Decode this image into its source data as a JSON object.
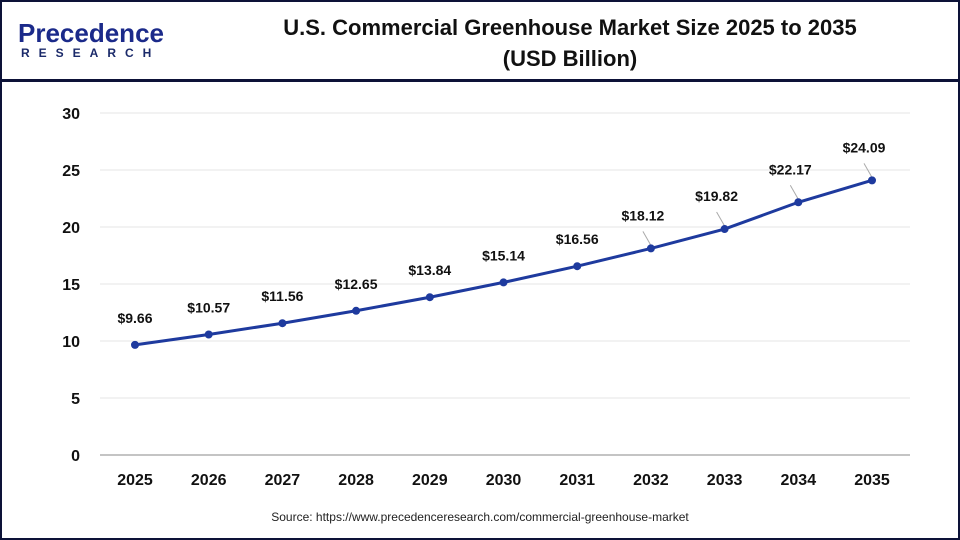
{
  "logo": {
    "brand": "Precedence",
    "sub": "RESEARCH"
  },
  "header": {
    "title_line1": "U.S. Commercial Greenhouse Market Size 2025 to 2035",
    "title_line2": "(USD Billion)"
  },
  "source": "Source: https://www.precedenceresearch.com/commercial-greenhouse-market",
  "chart_data": {
    "type": "line",
    "title": "U.S. Commercial Greenhouse Market Size 2025 to 2035 (USD Billion)",
    "categories": [
      "2025",
      "2026",
      "2027",
      "2028",
      "2029",
      "2030",
      "2031",
      "2032",
      "2033",
      "2034",
      "2035"
    ],
    "values": [
      9.66,
      10.57,
      11.56,
      12.65,
      13.84,
      15.14,
      16.56,
      18.12,
      19.82,
      22.17,
      24.09
    ],
    "data_labels": [
      "$9.66",
      "$10.57",
      "$11.56",
      "$12.65",
      "$13.84",
      "$15.14",
      "$16.56",
      "$18.12",
      "$19.82",
      "$22.17",
      "$24.09"
    ],
    "yticks": [
      "0",
      "5",
      "10",
      "15",
      "20",
      "25",
      "30"
    ],
    "ylim": [
      0,
      30
    ],
    "grid": true,
    "line_color": "#1e3a9e"
  }
}
